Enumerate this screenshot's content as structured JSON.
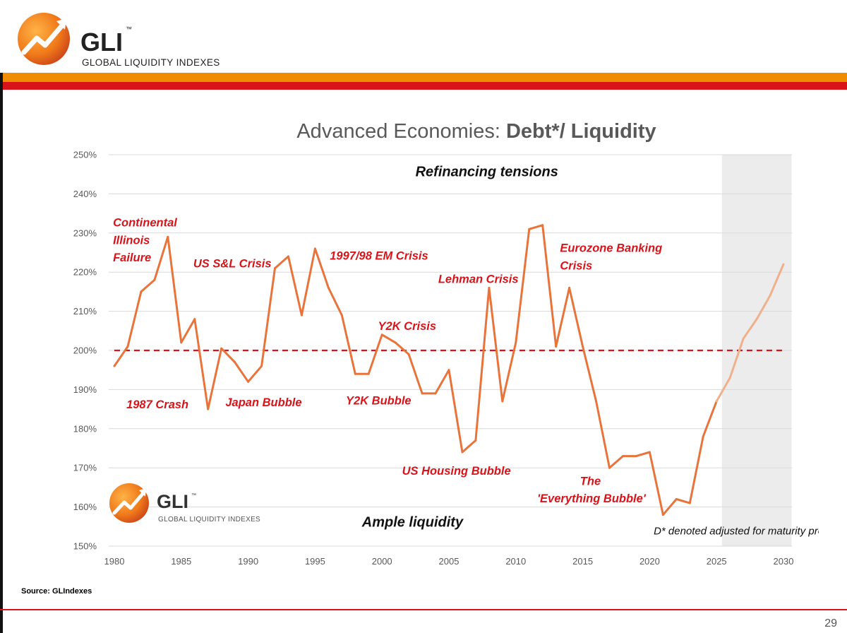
{
  "header": {
    "logo_title": "GLI",
    "logo_tm": "™",
    "logo_subtitle": "GLOBAL LIQUIDITY INDEXES"
  },
  "footer": {
    "source": "Source: GLIndexes",
    "page_number": "29"
  },
  "colors": {
    "line": "#e8743b",
    "line_projection": "#f0b08c",
    "reference": "#d8141a",
    "annotation": "#d8141a",
    "forecast_shade": "#ececec",
    "orange_bar": "#f08c00",
    "red_bar": "#d8141a"
  },
  "chart_data": {
    "type": "line",
    "title_regular": "Advanced Economies: ",
    "title_bold": "Debt*/ Liquidity",
    "xlabel": "",
    "ylabel": "",
    "xlim": [
      1980,
      2030
    ],
    "ylim": [
      150,
      250
    ],
    "x_ticks": [
      1980,
      1985,
      1990,
      1995,
      2000,
      2005,
      2010,
      2015,
      2020,
      2025,
      2030
    ],
    "y_ticks": [
      150,
      160,
      170,
      180,
      190,
      200,
      210,
      220,
      230,
      240,
      250
    ],
    "y_tick_labels": [
      "150%",
      "160%",
      "170%",
      "180%",
      "190%",
      "200%",
      "210%",
      "220%",
      "230%",
      "240%",
      "250%"
    ],
    "grid": "horizontal",
    "forecast_region": [
      2025.4,
      2030.6
    ],
    "reference_line": {
      "y": 200,
      "x_start": 1980,
      "x_end": 2030,
      "style": "dashed"
    },
    "series": [
      {
        "name": "Debt*/ Liquidity",
        "x": [
          1980,
          1981,
          1982,
          1983,
          1984,
          1985,
          1986,
          1987,
          1988,
          1989,
          1990,
          1991,
          1992,
          1993,
          1994,
          1995,
          1996,
          1997,
          1998,
          1999,
          2000,
          2001,
          2002,
          2003,
          2004,
          2005,
          2006,
          2007,
          2008,
          2009,
          2010,
          2011,
          2012,
          2013,
          2014,
          2015,
          2016,
          2017,
          2018,
          2019,
          2020,
          2021,
          2022,
          2023,
          2024,
          2025
        ],
        "values": [
          196,
          201,
          215,
          218,
          229,
          202,
          208,
          185,
          200.5,
          197,
          192,
          196,
          221,
          224,
          209,
          226,
          216,
          209,
          194,
          194,
          204,
          202,
          199,
          189,
          189,
          195,
          174,
          177,
          216,
          187,
          202,
          231,
          232,
          201,
          216,
          201,
          187,
          170,
          173,
          173,
          174,
          158,
          162,
          161,
          178,
          187
        ]
      },
      {
        "name": "Projection",
        "x": [
          2025,
          2026,
          2027,
          2028,
          2029,
          2030
        ],
        "values": [
          187,
          193,
          203,
          208,
          214,
          222
        ]
      }
    ],
    "annotations": [
      {
        "text": "Refinancing tensions",
        "x": 2002.5,
        "y": 244.5
      },
      {
        "text": "Ample liquidity",
        "x": 1998.5,
        "y": 155
      },
      {
        "text": "D* denoted adjusted for maturity profile",
        "x": 2020.3,
        "y": 153
      },
      {
        "text": "Continental",
        "x": 1979.9,
        "y": 231.7
      },
      {
        "text": "Illinois",
        "x": 1979.9,
        "y": 227.2
      },
      {
        "text": "Failure",
        "x": 1979.9,
        "y": 222.7
      },
      {
        "text": "US S&L Crisis",
        "x": 1985.9,
        "y": 221.2
      },
      {
        "text": "1997/98 EM Crisis",
        "x": 1996.1,
        "y": 223.2
      },
      {
        "text": "Lehman Crisis",
        "x": 2004.2,
        "y": 217.2
      },
      {
        "text": "Eurozone Banking",
        "x": 2013.3,
        "y": 225.2
      },
      {
        "text": "Crisis",
        "x": 2013.3,
        "y": 220.7
      },
      {
        "text": "Y2K Crisis",
        "x": 1999.7,
        "y": 205.2
      },
      {
        "text": "1987 Crash",
        "x": 1980.9,
        "y": 185.2
      },
      {
        "text": "Japan Bubble",
        "x": 1988.3,
        "y": 185.7
      },
      {
        "text": "Y2K Bubble",
        "x": 1997.3,
        "y": 186.2
      },
      {
        "text": "US Housing Bubble",
        "x": 2001.5,
        "y": 168.2
      },
      {
        "text": "The",
        "x": 2014.8,
        "y": 165.6
      },
      {
        "text": "'Everything Bubble'",
        "x": 2011.6,
        "y": 161.2
      }
    ]
  },
  "inner_logo": {
    "title": "GLI",
    "tm": "™",
    "subtitle": "GLOBAL LIQUIDITY INDEXES"
  }
}
